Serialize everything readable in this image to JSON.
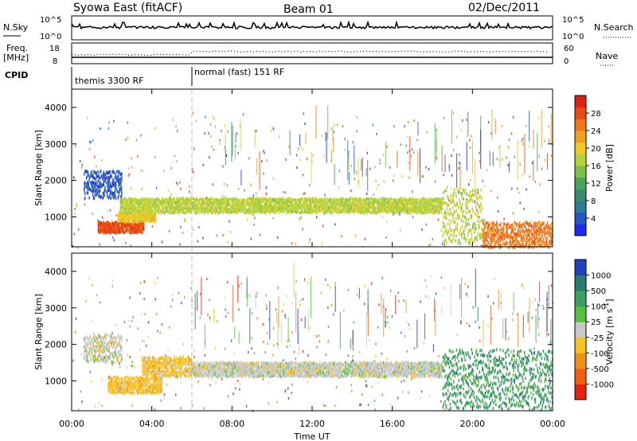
{
  "header": {
    "station": "Syowa East (fitACF)",
    "beam": "Beam 01",
    "date": "02/Dec/2011"
  },
  "status_panels": {
    "nsky_label": "N.Sky",
    "nsky_ticks": [
      "10^5",
      "10^0"
    ],
    "nsearch_label": "N.Search",
    "nsearch_ticks": [
      "10^5",
      "10^0"
    ],
    "freq_label": "Freq.",
    "freq_unit": "[MHz]",
    "freq_ticks": [
      "18",
      "8"
    ],
    "nave_label": "Nave",
    "nave_ticks": [
      "60",
      "0"
    ],
    "cpid_label": "CPID",
    "cpid_segments": [
      {
        "label": "themis 3300 RF",
        "start_hour": 0
      },
      {
        "label": "normal (fast) 151 RF",
        "start_hour": 6
      }
    ]
  },
  "chart_data": [
    {
      "type": "heatmap",
      "title": "",
      "parameter": "Power",
      "xlabel": "",
      "ylabel": "Slant Range [km]",
      "x_range_hours": [
        0,
        24
      ],
      "ylim": [
        180,
        4500
      ],
      "yticks": [
        1000,
        2000,
        3000,
        4000
      ],
      "xticks": [
        "00:00",
        "04:00",
        "08:00",
        "12:00",
        "16:00",
        "20:00",
        "00:00"
      ],
      "colorbar": {
        "label": "Power [dB]",
        "ticks": [
          "4",
          "8",
          "12",
          "16",
          "20",
          "24",
          "28"
        ],
        "colors": [
          "#1a2bf0",
          "#2a55c8",
          "#2f7a9a",
          "#3a8c6a",
          "#4aa55a",
          "#7cc04a",
          "#b8d23a",
          "#f0c828",
          "#f0a020",
          "#f07818",
          "#e84c10",
          "#e02010"
        ]
      },
      "features": [
        {
          "from_hour": 0.6,
          "to_hour": 2.5,
          "range_km": [
            1550,
            2300
          ],
          "power_db": 5
        },
        {
          "from_hour": 1.3,
          "to_hour": 3.6,
          "range_km": [
            600,
            900
          ],
          "power_db": 28
        },
        {
          "from_hour": 2.3,
          "to_hour": 4.2,
          "range_km": [
            900,
            1150
          ],
          "power_db": 20
        },
        {
          "from_hour": 2.4,
          "to_hour": 18.5,
          "range_km": [
            1150,
            1550
          ],
          "power_db": 16
        },
        {
          "from_hour": 18.5,
          "to_hour": 20.5,
          "range_km": [
            300,
            1800
          ],
          "power_db": 18
        },
        {
          "from_hour": 20.5,
          "to_hour": 24,
          "range_km": [
            200,
            900
          ],
          "power_db": 26
        }
      ]
    },
    {
      "type": "heatmap",
      "title": "",
      "parameter": "Velocity",
      "xlabel": "Time UT",
      "ylabel": "Slant Range [km]",
      "x_range_hours": [
        0,
        24
      ],
      "ylim": [
        180,
        4500
      ],
      "yticks": [
        1000,
        2000,
        3000,
        4000
      ],
      "xticks": [
        "00:00",
        "04:00",
        "08:00",
        "12:00",
        "16:00",
        "20:00",
        "00:00"
      ],
      "colorbar": {
        "label": "Velocity [m s^-1]",
        "ticks": [
          "1000",
          "500",
          "100",
          "25",
          "-25",
          "-100",
          "-500",
          "-1000"
        ],
        "colors": [
          "#2040c0",
          "#2a7a70",
          "#3aa060",
          "#58c040",
          "#c8c8c8",
          "#f8c020",
          "#f09018",
          "#f06010",
          "#e82010"
        ]
      },
      "features": [
        {
          "from_hour": 0.6,
          "to_hour": 2.5,
          "range_km": [
            1550,
            2300
          ],
          "velocity_ms": 25
        },
        {
          "from_hour": 1.8,
          "to_hour": 4.5,
          "range_km": [
            700,
            1150
          ],
          "velocity_ms": -100
        },
        {
          "from_hour": 3.5,
          "to_hour": 6.0,
          "range_km": [
            1150,
            1700
          ],
          "velocity_ms": -100
        },
        {
          "from_hour": 6.0,
          "to_hour": 18.5,
          "range_km": [
            1150,
            1550
          ],
          "velocity_ms": 0
        },
        {
          "from_hour": 18.5,
          "to_hour": 24,
          "range_km": [
            250,
            1900
          ],
          "velocity_ms": 250
        }
      ]
    }
  ]
}
